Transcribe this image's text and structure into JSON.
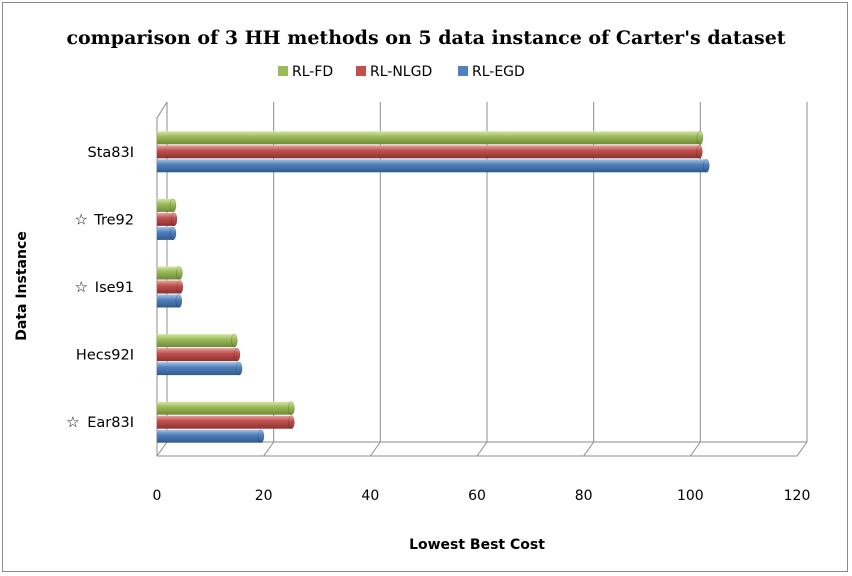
{
  "chart_data": {
    "type": "bar",
    "orientation": "horizontal",
    "title": "comparison of 3 HH methods on 5 data instance of Carter's dataset",
    "xlabel": "Lowest Best Cost",
    "ylabel": "Data Instance",
    "xlim": [
      0,
      120
    ],
    "xticks": [
      "0",
      "20",
      "40",
      "60",
      "80",
      "100",
      "120"
    ],
    "grid": "vertical",
    "legend_position": "top",
    "categories": [
      {
        "label": "Sta83I",
        "starred": false
      },
      {
        "label": "Tre92",
        "starred": true
      },
      {
        "label": "Ise91",
        "starred": true
      },
      {
        "label": "Hecs92I",
        "starred": false
      },
      {
        "label": "Ear83I",
        "starred": true
      }
    ],
    "series": [
      {
        "name": "RL-FD",
        "color": "#9bbb59",
        "values": [
          101.8,
          3.0,
          4.2,
          14.5,
          25.2
        ]
      },
      {
        "name": "RL-NLGD",
        "color": "#c0504d",
        "values": [
          101.7,
          3.2,
          4.3,
          15.0,
          25.2
        ]
      },
      {
        "name": "RL-EGD",
        "color": "#4f81bd",
        "values": [
          103.0,
          3.0,
          4.1,
          15.4,
          19.5
        ]
      }
    ],
    "star_symbol": "☆"
  }
}
